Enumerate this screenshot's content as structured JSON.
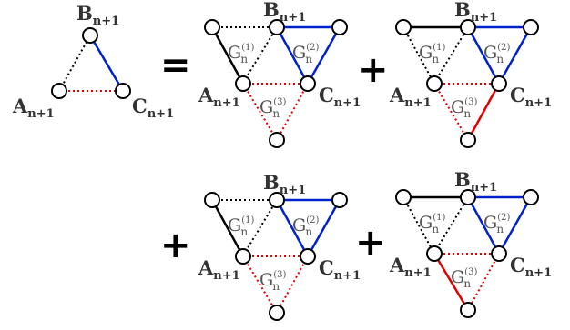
{
  "colors": {
    "black": "#000000",
    "blue": "#0022cc",
    "red": "#e00000"
  },
  "left": {
    "A": "A",
    "B": "B",
    "C": "C",
    "sub": "n+1"
  },
  "operators": {
    "equals": "=",
    "plus": "+"
  },
  "g_label": {
    "G": "G",
    "sub": "n",
    "sup1": "(1)",
    "sup2": "(2)",
    "sup3": "(3)"
  },
  "panels": [
    {
      "lines": {
        "l1": "black",
        "l2": "blue",
        "l3": "red"
      },
      "labels": {
        "A": "A",
        "B": "B",
        "C": "C",
        "sub": "n+1"
      }
    },
    {
      "lines": {
        "l1": "black",
        "l2": "blue",
        "l3": "red"
      },
      "labels": {
        "A": "A",
        "B": "B",
        "C": "C",
        "sub": "n+1"
      }
    },
    {
      "lines": {
        "l1": "black",
        "l2": "blue",
        "l3": "red"
      },
      "labels": {
        "A": "A",
        "B": "B",
        "C": "C",
        "sub": "n+1"
      }
    },
    {
      "lines": {
        "l1": "black",
        "l2": "blue",
        "l3": "red"
      },
      "labels": {
        "A": "A",
        "B": "B",
        "C": "C",
        "sub": "n+1"
      }
    }
  ]
}
